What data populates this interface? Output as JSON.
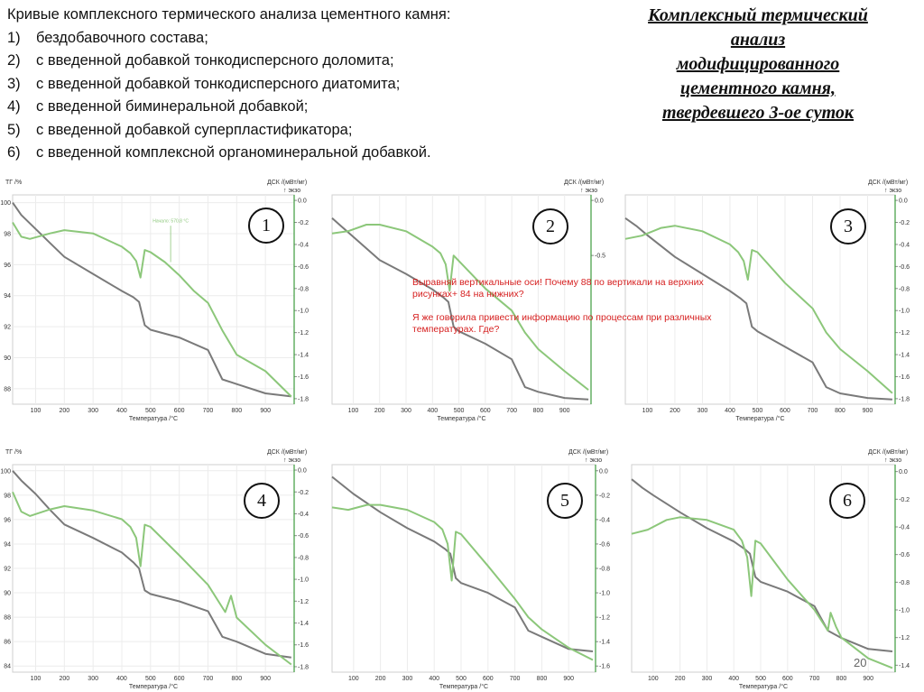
{
  "caption": {
    "heading": "Кривые комплексного термического анализа цементного камня:",
    "items": [
      {
        "num": "1)",
        "text": "бездобавочного состава;"
      },
      {
        "num": "2)",
        "text": "с введенной добавкой тонкодисперсного доломита;"
      },
      {
        "num": "3)",
        "text": "с введенной добавкой тонкодисперсного диатомита;"
      },
      {
        "num": "4)",
        "text": "с введенной биминеральной добавкой;"
      },
      {
        "num": "5)",
        "text": "с введенной добавкой суперпластификатора;"
      },
      {
        "num": "6)",
        "text": "с введенной комплексной органоминеральной добавкой."
      }
    ]
  },
  "title_lines": [
    "Комплексный термический",
    "анализ",
    "модифицированного",
    "цементного камня,",
    "твердевшего 3-ое суток"
  ],
  "note": {
    "line1": "Выравняй вертикальные оси! Почему 88 по вертикали на верхних рисунках+ 84 на нижних?",
    "line2": "Я же говорила привести информацию по процессам при различных температурах. Где?"
  },
  "page_number": "20",
  "colors": {
    "tg": "#7a7a7a",
    "dsc": "#8cc77a",
    "note": "#d62020",
    "axis_green": "#3e9b3e"
  },
  "chart_data": [
    {
      "id": "1",
      "type": "line",
      "y_label": "ТГ /%",
      "y2_label": "ДСК /(мВт/мг)",
      "y2_unit_note": "↑ экзо",
      "xlabel": "Температура /°C",
      "x_ticks": [
        100,
        200,
        300,
        400,
        500,
        600,
        700,
        800,
        900
      ],
      "y_ticks": [
        88,
        90,
        92,
        94,
        96,
        98,
        100
      ],
      "y2_ticks": [
        -1.8,
        -1.6,
        -1.4,
        -1.2,
        -1.0,
        -0.8,
        -0.6,
        -0.4,
        -0.2,
        0.0
      ],
      "annotation": "Начало: 570,8 °C",
      "xlim": [
        20,
        1000
      ],
      "ylim": [
        87,
        100.5
      ],
      "y2lim": [
        -1.85,
        0.05
      ],
      "tg": {
        "x": [
          20,
          50,
          100,
          150,
          200,
          300,
          400,
          440,
          460,
          480,
          500,
          600,
          700,
          750,
          800,
          900,
          990
        ],
        "y": [
          100,
          99.2,
          98.3,
          97.4,
          96.5,
          95.4,
          94.3,
          93.9,
          93.6,
          92.1,
          91.8,
          91.3,
          90.5,
          88.6,
          88.3,
          87.7,
          87.5
        ]
      },
      "dsc": {
        "x": [
          20,
          50,
          80,
          150,
          200,
          300,
          400,
          430,
          450,
          465,
          480,
          500,
          550,
          600,
          650,
          700,
          750,
          800,
          900,
          990
        ],
        "y": [
          -0.2,
          -0.33,
          -0.35,
          -0.3,
          -0.27,
          -0.3,
          -0.42,
          -0.48,
          -0.55,
          -0.7,
          -0.45,
          -0.47,
          -0.56,
          -0.68,
          -0.82,
          -0.93,
          -1.18,
          -1.4,
          -1.55,
          -1.78
        ]
      }
    },
    {
      "id": "2",
      "type": "line",
      "y_label": "",
      "y2_label": "ДСК /(мВт/мг)",
      "y2_unit_note": "↑ экзо",
      "xlabel": "Температура /°C",
      "x_ticks": [
        100,
        200,
        300,
        400,
        500,
        600,
        700,
        800,
        900
      ],
      "y_ticks": [],
      "y2_ticks": [
        -0.5,
        0.0
      ],
      "annotation": "",
      "xlim": [
        20,
        1000
      ],
      "ylim": [
        87,
        100.5
      ],
      "y2lim": [
        -1.85,
        0.05
      ],
      "tg": {
        "x": [
          20,
          60,
          100,
          200,
          300,
          400,
          440,
          460,
          480,
          500,
          600,
          700,
          750,
          800,
          900,
          990
        ],
        "y": [
          99,
          98.4,
          97.8,
          96.3,
          95.4,
          94.4,
          93.9,
          93.6,
          92.0,
          91.7,
          90.9,
          89.9,
          88.1,
          87.8,
          87.4,
          87.3
        ]
      },
      "dsc": {
        "x": [
          20,
          80,
          150,
          200,
          300,
          400,
          430,
          450,
          465,
          480,
          500,
          600,
          700,
          750,
          800,
          900,
          990
        ],
        "y": [
          -0.3,
          -0.28,
          -0.22,
          -0.22,
          -0.28,
          -0.42,
          -0.48,
          -0.58,
          -0.82,
          -0.5,
          -0.55,
          -0.8,
          -1.0,
          -1.2,
          -1.35,
          -1.55,
          -1.72
        ]
      }
    },
    {
      "id": "3",
      "type": "line",
      "y_label": "",
      "y2_label": "ДСК /(мВт/мг)",
      "y2_unit_note": "↑ экзо",
      "xlabel": "Температура /°C",
      "x_ticks": [
        100,
        200,
        300,
        400,
        500,
        600,
        700,
        800,
        900
      ],
      "y_ticks": [],
      "y2_ticks": [
        -1.8,
        -1.6,
        -1.4,
        -1.2,
        -1.0,
        -0.8,
        -0.6,
        -0.4,
        -0.2,
        0.0
      ],
      "annotation": "",
      "xlim": [
        20,
        1000
      ],
      "ylim": [
        87,
        100.5
      ],
      "y2lim": [
        -1.85,
        0.05
      ],
      "tg": {
        "x": [
          20,
          60,
          100,
          200,
          300,
          400,
          440,
          460,
          480,
          500,
          600,
          700,
          750,
          800,
          900,
          990
        ],
        "y": [
          99,
          98.5,
          97.9,
          96.5,
          95.4,
          94.3,
          93.8,
          93.5,
          92.0,
          91.7,
          90.7,
          89.7,
          88.1,
          87.7,
          87.4,
          87.3
        ]
      },
      "dsc": {
        "x": [
          20,
          80,
          150,
          200,
          300,
          400,
          430,
          450,
          465,
          480,
          500,
          600,
          700,
          750,
          800,
          900,
          990
        ],
        "y": [
          -0.35,
          -0.32,
          -0.25,
          -0.23,
          -0.28,
          -0.4,
          -0.47,
          -0.55,
          -0.72,
          -0.45,
          -0.47,
          -0.75,
          -0.98,
          -1.2,
          -1.35,
          -1.55,
          -1.75
        ]
      }
    },
    {
      "id": "4",
      "type": "line",
      "y_label": "ТГ /%",
      "y2_label": "ДСК /(мВт/мг)",
      "y2_unit_note": "↑ экзо",
      "xlabel": "Температура /°C",
      "x_ticks": [
        100,
        200,
        300,
        400,
        500,
        600,
        700,
        800,
        900
      ],
      "y_ticks": [
        84,
        86,
        88,
        90,
        92,
        94,
        96,
        98,
        100
      ],
      "y2_ticks": [
        -1.8,
        -1.6,
        -1.4,
        -1.2,
        -1.0,
        -0.8,
        -0.6,
        -0.4,
        -0.2,
        0.0
      ],
      "annotation": "",
      "xlim": [
        20,
        1000
      ],
      "ylim": [
        83.5,
        100.5
      ],
      "y2lim": [
        -1.85,
        0.05
      ],
      "tg": {
        "x": [
          20,
          50,
          100,
          150,
          200,
          300,
          400,
          440,
          460,
          480,
          500,
          600,
          700,
          750,
          800,
          900,
          990
        ],
        "y": [
          100,
          99.2,
          98.1,
          96.8,
          95.6,
          94.5,
          93.3,
          92.5,
          92.0,
          90.2,
          89.9,
          89.3,
          88.5,
          86.4,
          86.0,
          85.0,
          84.7
        ]
      },
      "dsc": {
        "x": [
          20,
          50,
          80,
          150,
          200,
          300,
          400,
          430,
          450,
          465,
          480,
          500,
          600,
          700,
          760,
          780,
          800,
          900,
          990
        ],
        "y": [
          -0.2,
          -0.38,
          -0.42,
          -0.36,
          -0.33,
          -0.37,
          -0.45,
          -0.52,
          -0.62,
          -0.88,
          -0.5,
          -0.52,
          -0.78,
          -1.05,
          -1.3,
          -1.15,
          -1.35,
          -1.6,
          -1.78
        ]
      }
    },
    {
      "id": "5",
      "type": "line",
      "y_label": "",
      "y2_label": "ДСК /(мВт/мг)",
      "y2_unit_note": "↑ экзо",
      "xlabel": "Температура /°C",
      "x_ticks": [
        100,
        200,
        300,
        400,
        500,
        600,
        700,
        800,
        900
      ],
      "y_ticks": [],
      "y2_ticks": [
        -1.6,
        -1.4,
        -1.2,
        -1.0,
        -0.8,
        -0.6,
        -0.4,
        -0.2,
        0.0
      ],
      "annotation": "",
      "xlim": [
        20,
        1000
      ],
      "ylim": [
        83.5,
        100.5
      ],
      "y2lim": [
        -1.65,
        0.05
      ],
      "tg": {
        "x": [
          20,
          60,
          100,
          200,
          300,
          400,
          440,
          460,
          480,
          500,
          600,
          700,
          750,
          800,
          900,
          990
        ],
        "y": [
          99.5,
          98.8,
          98.1,
          96.6,
          95.3,
          94.2,
          93.6,
          93.2,
          91.2,
          90.8,
          90.0,
          88.8,
          86.9,
          86.4,
          85.4,
          85.2
        ]
      },
      "dsc": {
        "x": [
          20,
          80,
          150,
          200,
          300,
          400,
          430,
          450,
          465,
          480,
          500,
          600,
          700,
          750,
          800,
          900,
          990
        ],
        "y": [
          -0.3,
          -0.32,
          -0.28,
          -0.28,
          -0.32,
          -0.42,
          -0.48,
          -0.6,
          -0.9,
          -0.5,
          -0.52,
          -0.78,
          -1.05,
          -1.2,
          -1.3,
          -1.45,
          -1.55
        ]
      }
    },
    {
      "id": "6",
      "type": "line",
      "y_label": "",
      "y2_label": "ДСК /(мВт/мг)",
      "y2_unit_note": "↑ экзо",
      "xlabel": "Температура /°C",
      "x_ticks": [
        100,
        200,
        300,
        400,
        500,
        600,
        700,
        800,
        900
      ],
      "y_ticks": [],
      "y2_ticks": [
        -1.4,
        -1.2,
        -1.0,
        -0.8,
        -0.6,
        -0.4,
        -0.2,
        0.0
      ],
      "annotation": "",
      "xlim": [
        20,
        1000
      ],
      "ylim": [
        83.5,
        100.5
      ],
      "y2lim": [
        -1.45,
        0.05
      ],
      "tg": {
        "x": [
          20,
          60,
          100,
          200,
          300,
          400,
          440,
          460,
          480,
          500,
          600,
          700,
          750,
          800,
          900,
          990
        ],
        "y": [
          99.3,
          98.6,
          98.0,
          96.6,
          95.3,
          94.2,
          93.6,
          93.2,
          91.3,
          90.9,
          90.1,
          88.9,
          86.9,
          86.3,
          85.4,
          85.2
        ]
      },
      "dsc": {
        "x": [
          20,
          80,
          150,
          200,
          300,
          400,
          430,
          450,
          465,
          480,
          500,
          600,
          700,
          750,
          760,
          780,
          800,
          900,
          990
        ],
        "y": [
          -0.45,
          -0.42,
          -0.35,
          -0.33,
          -0.35,
          -0.42,
          -0.5,
          -0.62,
          -0.9,
          -0.5,
          -0.52,
          -0.78,
          -1.0,
          -1.15,
          -1.02,
          -1.12,
          -1.2,
          -1.35,
          -1.42
        ]
      }
    }
  ]
}
